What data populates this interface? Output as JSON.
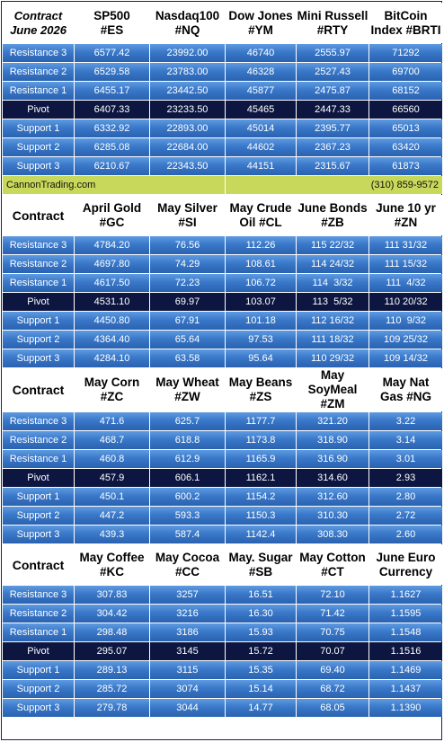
{
  "sections": [
    {
      "headers": [
        [
          "Contract",
          "June 2026"
        ],
        [
          "SP500",
          "#ES"
        ],
        [
          "Nasdaq100",
          "#NQ"
        ],
        [
          "Dow Jones",
          "#YM"
        ],
        [
          "Mini Russell",
          "#RTY"
        ],
        [
          "BitCoin",
          "Index #BRTI"
        ]
      ],
      "rows": [
        [
          "Resistance 3",
          "6577.42",
          "23992.00",
          "46740",
          "2555.97",
          "71292"
        ],
        [
          "Resistance 2",
          "6529.58",
          "23783.00",
          "46328",
          "2527.43",
          "69700"
        ],
        [
          "Resistance 1",
          "6455.17",
          "23442.50",
          "45877",
          "2475.87",
          "68152"
        ],
        [
          "Pivot",
          "6407.33",
          "23233.50",
          "45465",
          "2447.33",
          "66560"
        ],
        [
          "Support 1",
          "6332.92",
          "22893.00",
          "45014",
          "2395.77",
          "65013"
        ],
        [
          "Support 2",
          "6285.08",
          "22684.00",
          "44602",
          "2367.23",
          "63420"
        ],
        [
          "Support 3",
          "6210.67",
          "22343.50",
          "44151",
          "2315.67",
          "61873"
        ]
      ]
    },
    {
      "headers": [
        [
          "Contract"
        ],
        [
          "April Gold",
          "#GC"
        ],
        [
          "May Silver",
          "#SI"
        ],
        [
          "May Crude",
          "Oil #CL"
        ],
        [
          "June Bonds",
          "#ZB"
        ],
        [
          "June 10 yr",
          "#ZN"
        ]
      ],
      "rows": [
        [
          "Resistance 3",
          "4784.20",
          "76.56",
          "112.26",
          "115 22/32",
          "111 31/32"
        ],
        [
          "Resistance 2",
          "4697.80",
          "74.29",
          "108.61",
          "114 24/32",
          "111 15/32"
        ],
        [
          "Resistance 1",
          "4617.50",
          "72.23",
          "106.72",
          "114  3/32",
          "111  4/32"
        ],
        [
          "Pivot",
          "4531.10",
          "69.97",
          "103.07",
          "113  5/32",
          "110 20/32"
        ],
        [
          "Support 1",
          "4450.80",
          "67.91",
          "101.18",
          "112 16/32",
          "110  9/32"
        ],
        [
          "Support 2",
          "4364.40",
          "65.64",
          "97.53",
          "111 18/32",
          "109 25/32"
        ],
        [
          "Support 3",
          "4284.10",
          "63.58",
          "95.64",
          "110 29/32",
          "109 14/32"
        ]
      ]
    },
    {
      "headers": [
        [
          "Contract"
        ],
        [
          "May Corn",
          "#ZC"
        ],
        [
          "May  Wheat",
          "#ZW"
        ],
        [
          "May Beans",
          "#ZS"
        ],
        [
          "May",
          "SoyMeal",
          "#ZM"
        ],
        [
          "May Nat",
          "Gas #NG"
        ]
      ],
      "rows": [
        [
          "Resistance 3",
          "471.6",
          "625.7",
          "1177.7",
          "321.20",
          "3.22"
        ],
        [
          "Resistance 2",
          "468.7",
          "618.8",
          "1173.8",
          "318.90",
          "3.14"
        ],
        [
          "Resistance 1",
          "460.8",
          "612.9",
          "1165.9",
          "316.90",
          "3.01"
        ],
        [
          "Pivot",
          "457.9",
          "606.1",
          "1162.1",
          "314.60",
          "2.93"
        ],
        [
          "Support 1",
          "450.1",
          "600.2",
          "1154.2",
          "312.60",
          "2.80"
        ],
        [
          "Support 2",
          "447.2",
          "593.3",
          "1150.3",
          "310.30",
          "2.72"
        ],
        [
          "Support 3",
          "439.3",
          "587.4",
          "1142.4",
          "308.30",
          "2.60"
        ]
      ]
    },
    {
      "headers": [
        [
          "Contract"
        ],
        [
          "May Coffee",
          "#KC"
        ],
        [
          "May Cocoa",
          "#CC"
        ],
        [
          "May. Sugar",
          "#SB"
        ],
        [
          "May Cotton",
          "#CT"
        ],
        [
          "June Euro",
          "Currency"
        ]
      ],
      "rows": [
        [
          "Resistance 3",
          "307.83",
          "3257",
          "16.51",
          "72.10",
          "1.1627"
        ],
        [
          "Resistance 2",
          "304.42",
          "3216",
          "16.30",
          "71.42",
          "1.1595"
        ],
        [
          "Resistance 1",
          "298.48",
          "3186",
          "15.93",
          "70.75",
          "1.1548"
        ],
        [
          "Pivot",
          "295.07",
          "3145",
          "15.72",
          "70.07",
          "1.1516"
        ],
        [
          "Support 1",
          "289.13",
          "3115",
          "15.35",
          "69.40",
          "1.1469"
        ],
        [
          "Support 2",
          "285.72",
          "3074",
          "15.14",
          "68.72",
          "1.1437"
        ],
        [
          "Support 3",
          "279.78",
          "3044",
          "14.77",
          "68.05",
          "1.1390"
        ]
      ]
    }
  ],
  "info_bar": {
    "site": "CannonTrading.com",
    "phone": "(310) 859-9572"
  },
  "colors": {
    "row_gradient_top": "#5f9be0",
    "row_gradient_bottom": "#2a62b0",
    "pivot_row": "#0c1640",
    "info_bar": "#c8d85a",
    "border": "#1a2550"
  }
}
